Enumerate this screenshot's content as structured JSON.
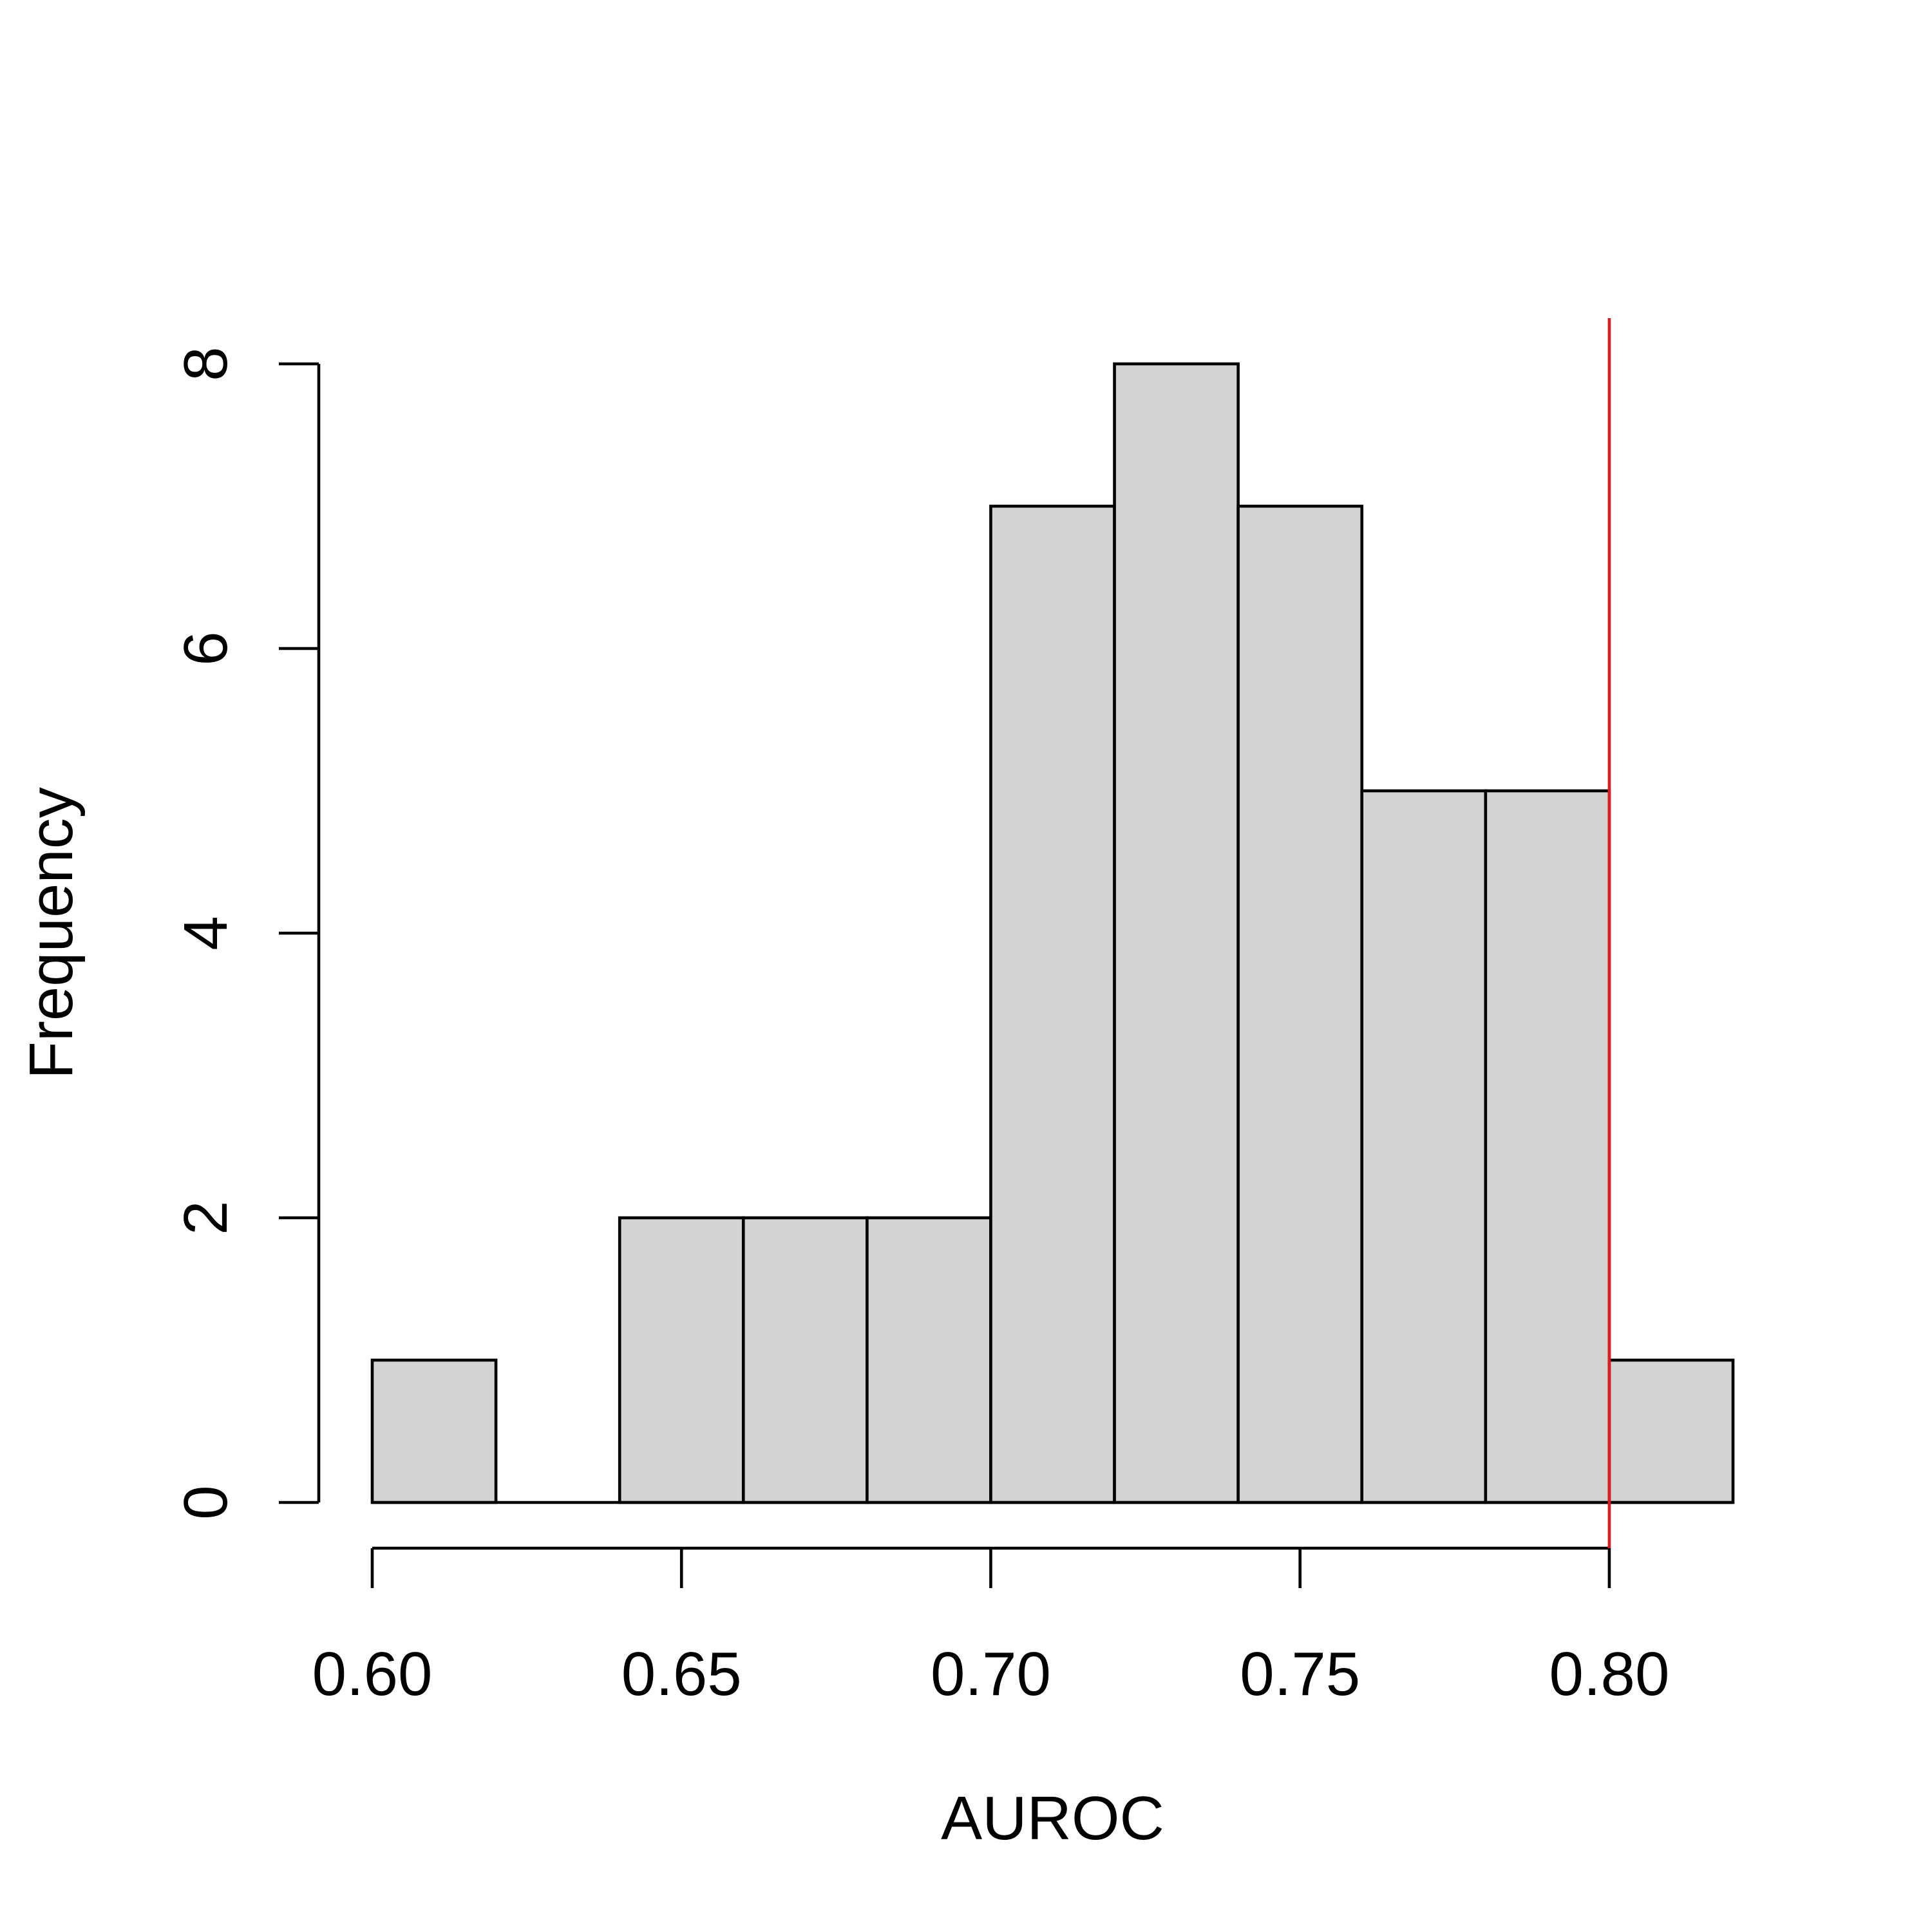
{
  "chart_data": {
    "type": "bar",
    "subtype": "histogram",
    "title": "",
    "xlabel": "AUROC",
    "ylabel": "Frequency",
    "bin_edges": [
      0.6,
      0.62,
      0.64,
      0.66,
      0.68,
      0.7,
      0.72,
      0.74,
      0.76,
      0.78,
      0.8,
      0.82
    ],
    "values": [
      1,
      0,
      2,
      2,
      2,
      7,
      8,
      7,
      5,
      5,
      1
    ],
    "xlim": [
      0.6,
      0.82
    ],
    "ylim": [
      0,
      8
    ],
    "x_ticks": [
      0.6,
      0.65,
      0.7,
      0.75,
      0.8
    ],
    "x_tick_labels": [
      "0.60",
      "0.65",
      "0.70",
      "0.75",
      "0.80"
    ],
    "y_ticks": [
      0,
      2,
      4,
      6,
      8
    ],
    "y_tick_labels": [
      "0",
      "2",
      "4",
      "6",
      "8"
    ],
    "reference_line": {
      "x": 0.8,
      "color": "#e31a1c"
    },
    "bar_fill": "#d3d3d3",
    "bar_edge": "#000000",
    "grid": false,
    "legend": "none"
  }
}
